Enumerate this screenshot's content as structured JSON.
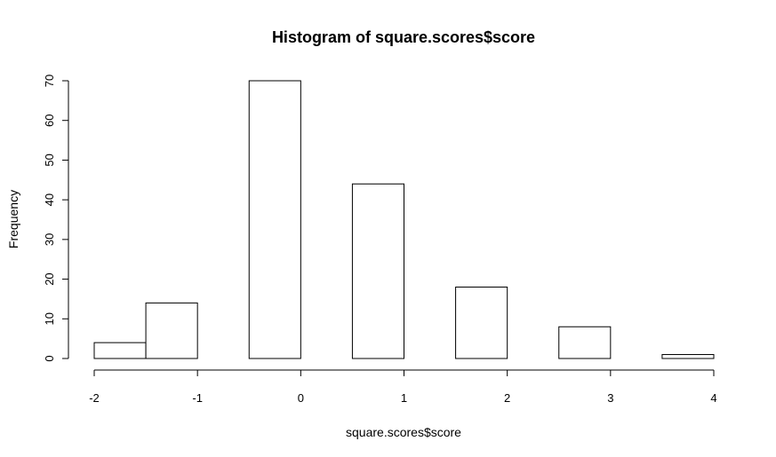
{
  "chart_data": {
    "type": "bar",
    "title": "Histogram of square.scores$score",
    "xlabel": "square.scores$score",
    "ylabel": "Frequency",
    "xlim": [
      -2,
      4
    ],
    "ylim": [
      0,
      70
    ],
    "x_ticks": [
      "-2",
      "-1",
      "0",
      "1",
      "2",
      "3",
      "4"
    ],
    "y_ticks": [
      "0",
      "10",
      "20",
      "30",
      "40",
      "50",
      "60",
      "70"
    ],
    "bins": [
      {
        "start": -2.0,
        "end": -1.5,
        "count": 4
      },
      {
        "start": -1.5,
        "end": -1.0,
        "count": 14
      },
      {
        "start": -1.0,
        "end": -0.5,
        "count": 0
      },
      {
        "start": -0.5,
        "end": 0.0,
        "count": 70
      },
      {
        "start": 0.0,
        "end": 0.5,
        "count": 0
      },
      {
        "start": 0.5,
        "end": 1.0,
        "count": 44
      },
      {
        "start": 1.0,
        "end": 1.5,
        "count": 0
      },
      {
        "start": 1.5,
        "end": 2.0,
        "count": 18
      },
      {
        "start": 2.0,
        "end": 2.5,
        "count": 0
      },
      {
        "start": 2.5,
        "end": 3.0,
        "count": 8
      },
      {
        "start": 3.0,
        "end": 3.5,
        "count": 0
      },
      {
        "start": 3.5,
        "end": 4.0,
        "count": 1
      }
    ],
    "grid": false,
    "colors": {
      "bar_fill": "#ffffff",
      "bar_stroke": "#000000"
    }
  }
}
